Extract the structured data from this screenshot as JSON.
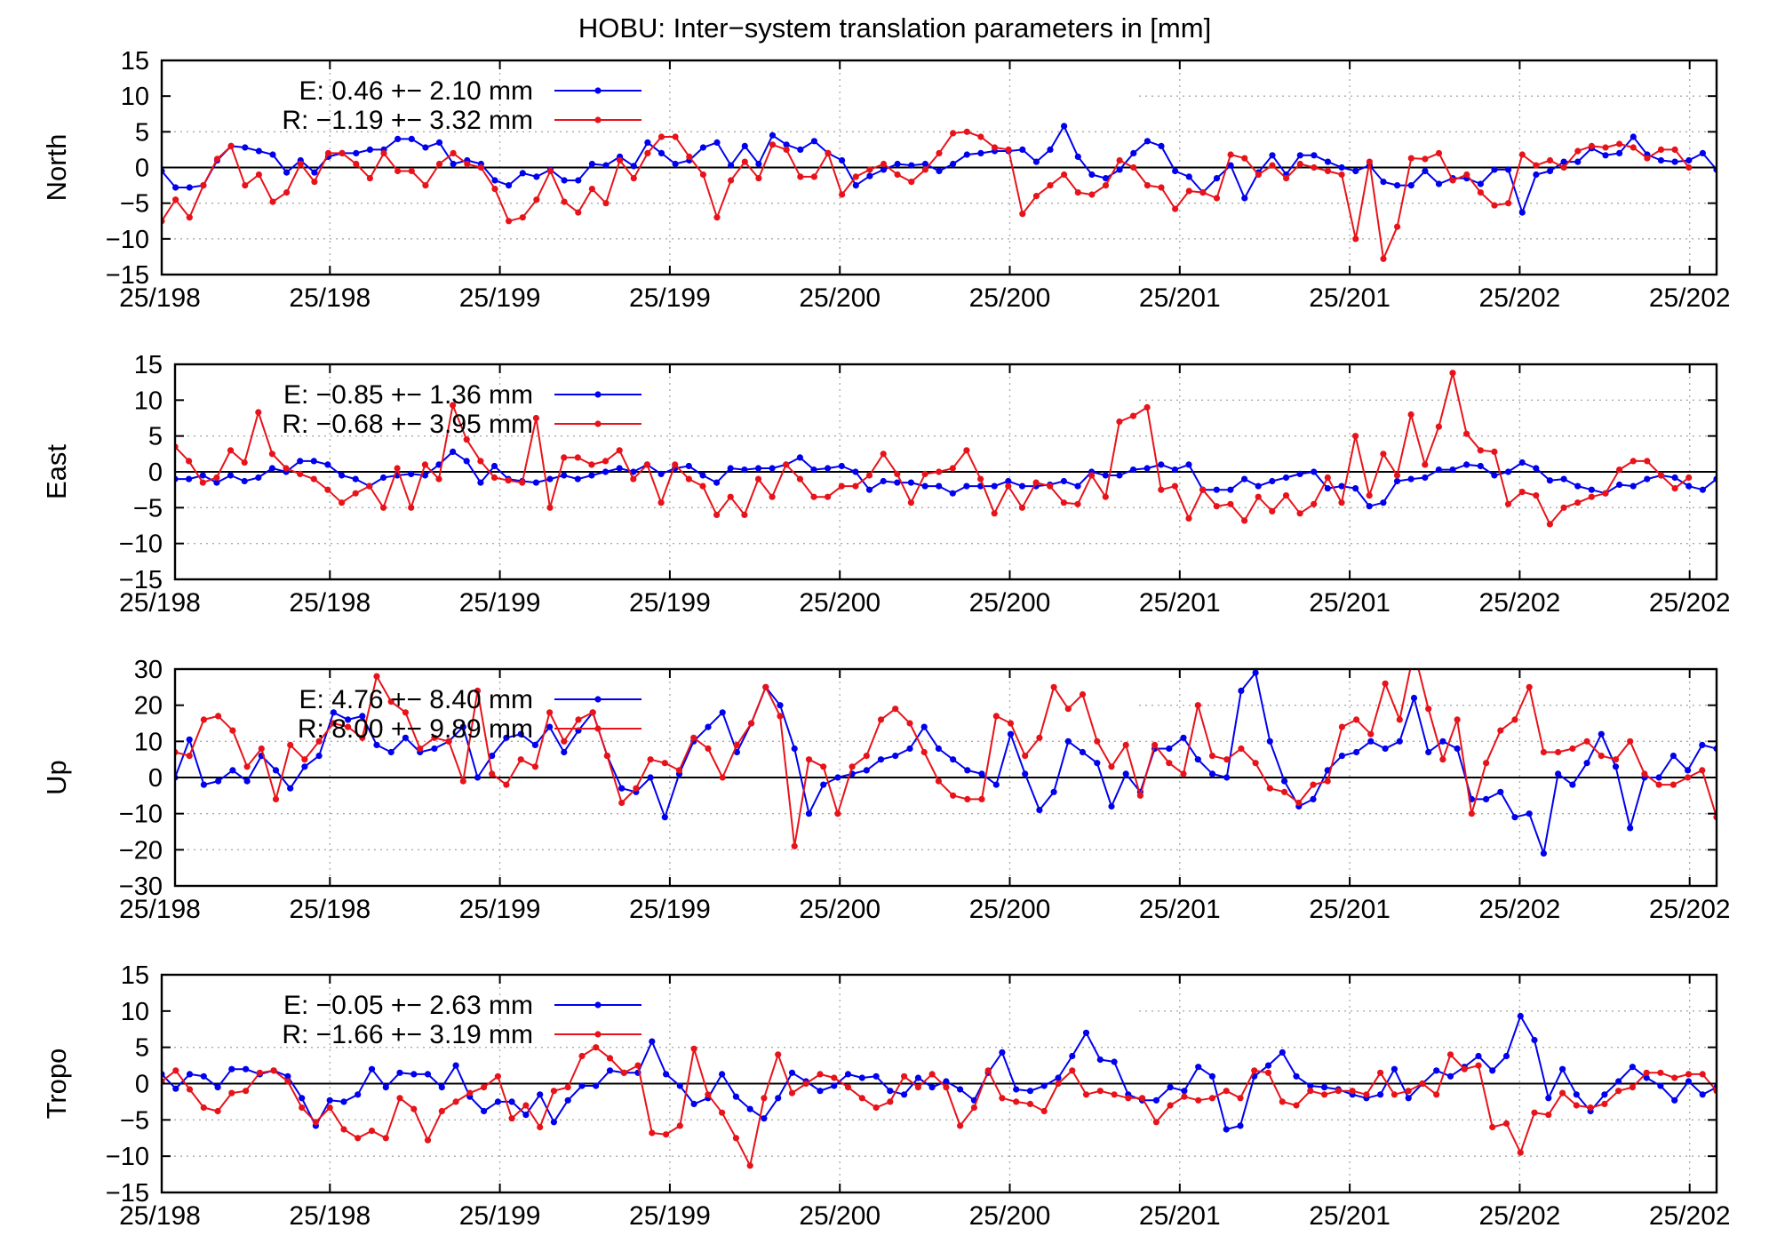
{
  "figure": {
    "title": "HOBU: Inter−system translation parameters in [mm]"
  },
  "colors": {
    "E": "#0000ee",
    "R": "#e8131a",
    "axis": "#000000",
    "grid": "#aaaaaa"
  },
  "x_tick_labels": [
    "25/198",
    "25/198",
    "25/199",
    "25/199",
    "25/200",
    "25/200",
    "25/201",
    "25/201",
    "25/202",
    "25/202"
  ],
  "chart_data": [
    {
      "type": "line",
      "ylabel": "North",
      "ylim": [
        -15,
        15
      ],
      "yticks": [
        -15,
        -10,
        -5,
        0,
        5,
        10,
        15
      ],
      "grid": true,
      "legend_position": "top-left",
      "series": [
        {
          "name": "E",
          "label": "E:   0.46 +− 2.10 mm",
          "values": [
            -0.5,
            -2.8,
            -2.8,
            -2.5,
            1.0,
            3.0,
            2.8,
            2.3,
            1.8,
            -0.7,
            1.0,
            -0.7,
            1.5,
            2.0,
            2.0,
            2.5,
            2.5,
            4.0,
            4.0,
            2.8,
            3.5,
            0.5,
            1.0,
            0.5,
            -1.8,
            -2.5,
            -0.8,
            -1.3,
            -0.3,
            -1.8,
            -1.8,
            0.5,
            0.3,
            1.5,
            0.2,
            3.5,
            2.0,
            0.5,
            1.0,
            2.8,
            3.5,
            0.3,
            3.0,
            0.5,
            4.5,
            3.2,
            2.5,
            3.7,
            2.0,
            1.0,
            -2.5,
            -1.2,
            -0.3,
            0.5,
            0.3,
            0.5,
            -0.5,
            0.5,
            1.8,
            2.0,
            2.3,
            2.3,
            2.5,
            0.8,
            2.5,
            5.8,
            1.5,
            -1.0,
            -1.5,
            -0.3,
            2.0,
            3.7,
            3.0,
            -0.5,
            -1.3,
            -3.5,
            -1.5,
            0.3,
            -4.3,
            -0.7,
            1.7,
            -1.0,
            1.7,
            1.7,
            0.8,
            0.0,
            -0.5,
            0.3,
            -2.0,
            -2.5,
            -2.5,
            -0.5,
            -2.3,
            -1.5,
            -1.5,
            -2.3,
            -0.3,
            -0.3,
            -6.3,
            -1.0,
            -0.5,
            0.8,
            0.8,
            2.7,
            1.7,
            2.0,
            4.3,
            1.8,
            1.0,
            0.8,
            1.0,
            2.0,
            -0.3
          ]
        },
        {
          "name": "R",
          "label": "R:  −1.19 +− 3.32 mm",
          "values": [
            -7.5,
            -4.5,
            -7.0,
            -2.5,
            1.2,
            3.0,
            -2.5,
            -1.0,
            -4.8,
            -3.5,
            0.5,
            -2.0,
            2.0,
            2.0,
            0.5,
            -1.5,
            2.0,
            -0.5,
            -0.5,
            -2.5,
            0.5,
            2.0,
            0.5,
            0.0,
            -3.0,
            -7.5,
            -7.0,
            -4.5,
            -0.5,
            -4.8,
            -6.3,
            -3.0,
            -5.0,
            1.0,
            -1.5,
            2.0,
            4.3,
            4.3,
            1.5,
            -1.0,
            -7.0,
            -1.8,
            0.8,
            -1.5,
            3.2,
            2.5,
            -1.3,
            -1.3,
            2.0,
            -3.8,
            -1.3,
            -0.3,
            0.5,
            -1.0,
            -2.0,
            -0.3,
            2.0,
            4.8,
            5.0,
            4.3,
            2.8,
            2.5,
            -6.5,
            -4.0,
            -2.5,
            -1.0,
            -3.5,
            -3.8,
            -2.5,
            1.0,
            0.0,
            -2.5,
            -2.8,
            -5.8,
            -3.3,
            -3.5,
            -4.3,
            1.8,
            1.3,
            -1.0,
            0.3,
            -1.5,
            0.5,
            0.0,
            -0.5,
            -1.0,
            -10.0,
            0.8,
            -12.8,
            -8.3,
            1.3,
            1.2,
            2.0,
            -1.8,
            -1.0,
            -3.5,
            -5.3,
            -5.0,
            1.8,
            0.3,
            1.0,
            0.0,
            2.3,
            3.0,
            2.8,
            3.3,
            2.8,
            1.3,
            2.5,
            2.5,
            0.0
          ]
        }
      ]
    },
    {
      "type": "line",
      "ylabel": "East",
      "ylim": [
        -15,
        15
      ],
      "yticks": [
        -15,
        -10,
        -5,
        0,
        5,
        10,
        15
      ],
      "grid": true,
      "legend_position": "top-left",
      "series": [
        {
          "name": "E",
          "label": "E:  −0.85 +− 1.36 mm",
          "values": [
            -1.0,
            -1.0,
            -0.5,
            -1.5,
            -0.5,
            -1.3,
            -0.8,
            0.5,
            0.0,
            1.5,
            1.5,
            1.0,
            -0.5,
            -1.0,
            -2.0,
            -0.8,
            -0.5,
            -0.3,
            -0.5,
            1.0,
            2.8,
            1.5,
            -1.5,
            0.8,
            -1.0,
            -1.3,
            -1.5,
            -1.0,
            -0.5,
            -1.0,
            -0.5,
            0.0,
            0.5,
            0.0,
            1.0,
            -0.3,
            0.5,
            0.8,
            -0.5,
            -1.5,
            0.5,
            0.3,
            0.5,
            0.5,
            1.0,
            2.0,
            0.3,
            0.5,
            0.8,
            0.0,
            -2.5,
            -1.3,
            -1.5,
            -1.5,
            -2.0,
            -2.0,
            -3.0,
            -2.0,
            -2.0,
            -2.0,
            -1.3,
            -2.0,
            -2.0,
            -1.8,
            -1.3,
            -2.0,
            0.0,
            -0.5,
            -0.5,
            0.3,
            0.5,
            1.0,
            0.3,
            1.0,
            -2.5,
            -2.5,
            -2.5,
            -1.0,
            -2.0,
            -1.3,
            -0.8,
            -0.3,
            0.0,
            -2.3,
            -2.0,
            -2.3,
            -4.8,
            -4.3,
            -1.3,
            -1.0,
            -0.8,
            0.3,
            0.3,
            1.0,
            0.8,
            -0.5,
            0.0,
            1.3,
            0.5,
            -1.2,
            -1.0,
            -2.0,
            -2.5,
            -3.0,
            -1.8,
            -2.0,
            -1.0,
            -0.5,
            -0.8,
            -2.0,
            -2.5,
            -1.0
          ]
        },
        {
          "name": "R",
          "label": "R:  −0.68 +− 3.95 mm",
          "values": [
            3.5,
            1.5,
            -1.5,
            -0.8,
            3.0,
            1.3,
            8.3,
            2.5,
            0.5,
            -0.3,
            -1.0,
            -2.5,
            -4.3,
            -3.0,
            -2.0,
            -5.0,
            0.5,
            -5.0,
            1.0,
            -1.0,
            9.3,
            4.5,
            1.5,
            -0.8,
            -1.2,
            -1.5,
            7.5,
            -5.0,
            2.0,
            2.0,
            1.0,
            1.5,
            3.0,
            -1.0,
            1.0,
            -4.3,
            1.0,
            -1.0,
            -2.0,
            -6.0,
            -3.5,
            -6.0,
            -1.0,
            -3.5,
            1.0,
            -1.0,
            -3.5,
            -3.5,
            -2.0,
            -2.0,
            -0.5,
            2.5,
            -0.3,
            -4.3,
            -0.3,
            0.0,
            0.5,
            3.0,
            -1.0,
            -5.8,
            -2.0,
            -5.0,
            -1.5,
            -2.0,
            -4.3,
            -4.5,
            -0.5,
            -3.5,
            7.0,
            7.8,
            9.0,
            -2.5,
            -2.0,
            -6.5,
            -2.5,
            -4.8,
            -4.5,
            -6.8,
            -3.5,
            -5.5,
            -3.3,
            -5.8,
            -4.5,
            -0.8,
            -4.3,
            5.0,
            -3.3,
            2.5,
            -0.5,
            8.0,
            1.0,
            6.3,
            13.8,
            5.3,
            3.0,
            2.8,
            -4.5,
            -2.8,
            -3.3,
            -7.3,
            -5.0,
            -4.3,
            -3.5,
            -3.0,
            0.3,
            1.5,
            1.5,
            -0.5,
            -2.3,
            -0.8
          ]
        }
      ]
    },
    {
      "type": "line",
      "ylabel": "Up",
      "ylim": [
        -30,
        30
      ],
      "yticks": [
        -30,
        -20,
        -10,
        0,
        10,
        20,
        30
      ],
      "grid": true,
      "legend_position": "top-left",
      "series": [
        {
          "name": "E",
          "label": "E:   4.76 +− 8.40 mm",
          "values": [
            0,
            10.5,
            -2,
            -1,
            2,
            -1,
            6,
            2,
            -3,
            3,
            6,
            18,
            16,
            17,
            9,
            7,
            11,
            7,
            8,
            10,
            14,
            0,
            6,
            11,
            12,
            9,
            14,
            7,
            13,
            18,
            6,
            -3,
            -4,
            0,
            -11,
            1,
            10,
            14,
            18,
            7,
            15,
            25,
            20,
            8,
            -10,
            -2,
            0,
            1,
            2,
            5,
            6,
            8,
            14,
            8,
            5,
            2,
            1,
            -2,
            12,
            1,
            -9,
            -4,
            10,
            7,
            4,
            -8,
            1,
            -4,
            8,
            8,
            11,
            5,
            1,
            0,
            24,
            29,
            10,
            -1,
            -8,
            -6,
            2,
            6,
            7,
            10,
            8,
            10,
            22,
            7,
            10,
            8,
            -6,
            -6,
            -4,
            -11,
            -10,
            -21,
            1,
            -2,
            4,
            12,
            3,
            -14,
            0,
            0,
            6,
            2,
            9,
            8
          ]
        },
        {
          "name": "R",
          "label": "R:   8.00 +− 9.89 mm",
          "values": [
            7,
            6,
            16,
            17,
            13,
            3,
            8,
            -6,
            9,
            5,
            10,
            15,
            14,
            11,
            28,
            21,
            18,
            8,
            11,
            10,
            -1,
            24,
            1,
            -2,
            5,
            3,
            18,
            10,
            16,
            18,
            6,
            -7,
            -3,
            5,
            4,
            2,
            11,
            8,
            0,
            9,
            15,
            25,
            17,
            -19,
            5,
            3,
            -10,
            3,
            6,
            16,
            19,
            15,
            7,
            -1,
            -5,
            -6,
            -6,
            17,
            15,
            6,
            11,
            25,
            19,
            23,
            10,
            3,
            9,
            -5,
            9,
            4,
            1,
            20,
            6,
            5,
            8,
            4,
            -3,
            -4,
            -7,
            -2,
            -1,
            14,
            16,
            12,
            26,
            16,
            35,
            19,
            5,
            16,
            -10,
            4,
            13,
            16,
            25,
            7,
            7,
            8,
            10,
            6,
            5,
            10,
            1,
            -2,
            -2,
            0,
            2,
            -11,
            -8,
            8
          ]
        }
      ]
    },
    {
      "type": "line",
      "ylabel": "Tropo",
      "ylim": [
        -15,
        15
      ],
      "yticks": [
        -15,
        -10,
        -5,
        0,
        5,
        10,
        15
      ],
      "grid": true,
      "legend_position": "top-left",
      "series": [
        {
          "name": "E",
          "label": "E:  −0.05 +− 2.63 mm",
          "values": [
            1.3,
            -0.7,
            1.3,
            1.0,
            -0.5,
            2.0,
            2.0,
            1.3,
            1.8,
            1.0,
            -2.0,
            -5.8,
            -2.3,
            -2.5,
            -1.5,
            2.0,
            -0.5,
            1.5,
            1.3,
            1.3,
            -0.5,
            2.5,
            -1.8,
            -3.8,
            -2.5,
            -2.5,
            -4.3,
            -1.5,
            -5.3,
            -2.3,
            -0.3,
            -0.3,
            1.8,
            1.5,
            1.5,
            5.8,
            1.3,
            -0.3,
            -2.8,
            -2.0,
            1.3,
            -1.8,
            -3.5,
            -4.8,
            -2.0,
            1.5,
            0.3,
            -1.0,
            -0.3,
            1.3,
            0.8,
            1.0,
            -1.0,
            -1.5,
            0.8,
            -0.5,
            0.3,
            -0.8,
            -2.3,
            1.5,
            4.3,
            -0.8,
            -1.0,
            -0.3,
            0.8,
            3.8,
            7.0,
            3.3,
            3.0,
            -1.5,
            -2.3,
            -2.3,
            -0.5,
            -1.0,
            2.3,
            1.0,
            -6.3,
            -5.8,
            1.0,
            2.5,
            4.3,
            1.0,
            -0.3,
            -0.5,
            -0.8,
            -1.5,
            -2.0,
            -1.5,
            2.0,
            -2.0,
            0.0,
            1.8,
            1.0,
            2.3,
            3.8,
            1.8,
            3.8,
            9.3,
            6.0,
            -2.0,
            2.0,
            -1.5,
            -3.8,
            -1.5,
            0.3,
            2.3,
            0.8,
            -0.3,
            -2.3,
            0.3,
            -1.5,
            -0.5
          ]
        },
        {
          "name": "R",
          "label": "R:  −1.66 +− 3.19 mm",
          "values": [
            0.3,
            1.8,
            -0.8,
            -3.3,
            -3.8,
            -1.3,
            -1.0,
            1.5,
            1.8,
            0.3,
            -3.3,
            -5.3,
            -3.3,
            -6.3,
            -7.5,
            -6.5,
            -7.5,
            -2.0,
            -3.5,
            -7.8,
            -3.8,
            -2.5,
            -1.3,
            -0.5,
            1.0,
            -4.8,
            -3.0,
            -6.0,
            -1.0,
            -0.5,
            3.8,
            5.0,
            3.5,
            1.5,
            2.5,
            -6.8,
            -7.0,
            -5.8,
            4.8,
            -1.5,
            -4.0,
            -7.5,
            -11.3,
            -2.0,
            4.0,
            -1.3,
            0.0,
            1.3,
            0.8,
            -0.5,
            -2.0,
            -3.3,
            -2.5,
            1.0,
            -0.5,
            1.3,
            -0.5,
            -5.8,
            -3.3,
            1.8,
            -2.0,
            -2.5,
            -2.8,
            -3.8,
            0.0,
            1.8,
            -1.5,
            -1.0,
            -1.5,
            -2.0,
            -2.0,
            -5.3,
            -3.0,
            -1.8,
            -2.3,
            -2.0,
            -1.0,
            -2.0,
            1.8,
            1.5,
            -2.5,
            -3.0,
            -1.0,
            -1.5,
            -1.0,
            -1.0,
            -1.5,
            1.5,
            -1.5,
            -1.0,
            0.0,
            -1.5,
            4.0,
            2.0,
            2.5,
            -6.0,
            -5.5,
            -9.5,
            -4.0,
            -4.3,
            -1.3,
            -3.0,
            -3.3,
            -2.8,
            -1.0,
            -0.5,
            1.5,
            1.5,
            0.8,
            1.3,
            1.3,
            -1.0
          ]
        }
      ]
    }
  ]
}
